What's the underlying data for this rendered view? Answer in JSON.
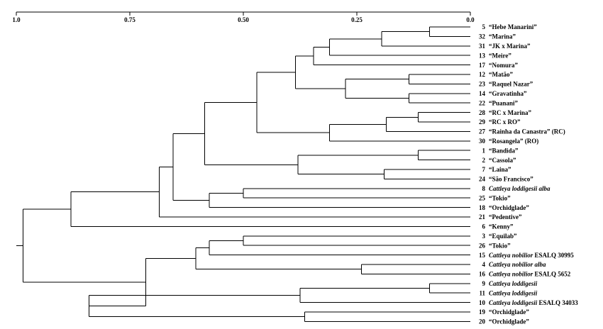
{
  "axis": {
    "ticks": [
      {
        "value": 1.0,
        "label": "1.0"
      },
      {
        "value": 0.75,
        "label": "0.75"
      },
      {
        "value": 0.5,
        "label": "0.50"
      },
      {
        "value": 0.25,
        "label": "0.25"
      },
      {
        "value": 0.0,
        "label": "0.0"
      }
    ]
  },
  "leaves": [
    {
      "num": "5",
      "segments": [
        {
          "text": "“Hebe Manarini”",
          "italic": false
        }
      ]
    },
    {
      "num": "32",
      "segments": [
        {
          "text": "“Marina”",
          "italic": false
        }
      ]
    },
    {
      "num": "31",
      "segments": [
        {
          "text": "“JK x Marina”",
          "italic": false
        }
      ]
    },
    {
      "num": "13",
      "segments": [
        {
          "text": "“Meire”",
          "italic": false
        }
      ]
    },
    {
      "num": "17",
      "segments": [
        {
          "text": "“Nomura”",
          "italic": false
        }
      ]
    },
    {
      "num": "12",
      "segments": [
        {
          "text": "“Matão”",
          "italic": false
        }
      ]
    },
    {
      "num": "23",
      "segments": [
        {
          "text": "“Raquel Nazar”",
          "italic": false
        }
      ]
    },
    {
      "num": "14",
      "segments": [
        {
          "text": "“Gravatinha”",
          "italic": false
        }
      ]
    },
    {
      "num": "22",
      "segments": [
        {
          "text": "“Puanani”",
          "italic": false
        }
      ]
    },
    {
      "num": "28",
      "segments": [
        {
          "text": "“RC x Marina”",
          "italic": false
        }
      ]
    },
    {
      "num": "29",
      "segments": [
        {
          "text": "“RC x RO”",
          "italic": false
        }
      ]
    },
    {
      "num": "27",
      "segments": [
        {
          "text": "“Rainha da Canastra” (RC)",
          "italic": false
        }
      ]
    },
    {
      "num": "30",
      "segments": [
        {
          "text": "“Rosangela” (RO)",
          "italic": false
        }
      ]
    },
    {
      "num": "1",
      "segments": [
        {
          "text": "“Bandida”",
          "italic": false
        }
      ]
    },
    {
      "num": "2",
      "segments": [
        {
          "text": "“Cassola”",
          "italic": false
        }
      ]
    },
    {
      "num": "7",
      "segments": [
        {
          "text": "“Laina”",
          "italic": false
        }
      ]
    },
    {
      "num": "24",
      "segments": [
        {
          "text": "“São Francisco”",
          "italic": false
        }
      ]
    },
    {
      "num": "8",
      "segments": [
        {
          "text": "Cattleya loddigesii alba",
          "italic": true
        }
      ]
    },
    {
      "num": "25",
      "segments": [
        {
          "text": "“Tokio”",
          "italic": false
        }
      ]
    },
    {
      "num": "18",
      "segments": [
        {
          "text": "“Orchidglade”",
          "italic": false
        }
      ]
    },
    {
      "num": "21",
      "segments": [
        {
          "text": "“Pedentive”",
          "italic": false
        }
      ]
    },
    {
      "num": "6",
      "segments": [
        {
          "text": "“Kenny”",
          "italic": false
        }
      ]
    },
    {
      "num": "3",
      "segments": [
        {
          "text": "“Equilab”",
          "italic": false
        }
      ]
    },
    {
      "num": "26",
      "segments": [
        {
          "text": "“Tokio”",
          "italic": false
        }
      ]
    },
    {
      "num": "15",
      "segments": [
        {
          "text": "Cattleya nobilior",
          "italic": true
        },
        {
          "text": " ESALQ 30995",
          "italic": false
        }
      ]
    },
    {
      "num": "4",
      "segments": [
        {
          "text": "Cattleya nobilior alba",
          "italic": true
        }
      ]
    },
    {
      "num": "16",
      "segments": [
        {
          "text": "Cattleya nobilior",
          "italic": true
        },
        {
          "text": " ESALQ 5652",
          "italic": false
        }
      ]
    },
    {
      "num": "9",
      "segments": [
        {
          "text": "Cattleya loddigesii",
          "italic": true
        }
      ]
    },
    {
      "num": "11",
      "segments": [
        {
          "text": "Cattleya loddigesii",
          "italic": true
        }
      ]
    },
    {
      "num": "10",
      "segments": [
        {
          "text": "Cattleya loddigesii",
          "italic": true
        },
        {
          "text": " ESALQ 34033",
          "italic": false
        }
      ]
    },
    {
      "num": "19",
      "segments": [
        {
          "text": "“Orchidglade”",
          "italic": false
        }
      ]
    },
    {
      "num": "20",
      "segments": [
        {
          "text": "“Orchidglade”",
          "italic": false
        }
      ]
    }
  ],
  "tree": {
    "h": 0.985,
    "c": [
      {
        "h": 0.88,
        "c": [
          {
            "h": 0.685,
            "c": [
              {
                "h": 0.655,
                "c": [
                  {
                    "h": 0.585,
                    "c": [
                      {
                        "h": 0.47,
                        "c": [
                          {
                            "h": 0.385,
                            "c": [
                              {
                                "h": 0.345,
                                "c": [
                                  {
                                    "h": 0.31,
                                    "c": [
                                      {
                                        "h": 0.195,
                                        "c": [
                                          {
                                            "h": 0.09,
                                            "c": [
                                              {
                                                "leaf": 0
                                              },
                                              {
                                                "leaf": 1
                                              }
                                            ]
                                          },
                                          {
                                            "leaf": 2
                                          }
                                        ]
                                      },
                                      {
                                        "leaf": 3
                                      }
                                    ]
                                  },
                                  {
                                    "leaf": 4
                                  }
                                ]
                              },
                              {
                                "h": 0.275,
                                "c": [
                                  {
                                    "h": 0.135,
                                    "c": [
                                      {
                                        "leaf": 5
                                      },
                                      {
                                        "leaf": 6
                                      }
                                    ]
                                  },
                                  {
                                    "h": 0.135,
                                    "c": [
                                      {
                                        "leaf": 7
                                      },
                                      {
                                        "leaf": 8
                                      }
                                    ]
                                  }
                                ]
                              }
                            ]
                          },
                          {
                            "h": 0.31,
                            "c": [
                              {
                                "h": 0.185,
                                "c": [
                                  {
                                    "h": 0.115,
                                    "c": [
                                      {
                                        "leaf": 9
                                      },
                                      {
                                        "leaf": 10
                                      }
                                    ]
                                  },
                                  {
                                    "leaf": 11
                                  }
                                ]
                              },
                              {
                                "leaf": 12
                              }
                            ]
                          }
                        ]
                      },
                      {
                        "h": 0.38,
                        "c": [
                          {
                            "h": 0.115,
                            "c": [
                              {
                                "leaf": 13
                              },
                              {
                                "leaf": 14
                              }
                            ]
                          },
                          {
                            "h": 0.19,
                            "c": [
                              {
                                "leaf": 15
                              },
                              {
                                "leaf": 16
                              }
                            ]
                          }
                        ]
                      }
                    ]
                  },
                  {
                    "h": 0.575,
                    "c": [
                      {
                        "h": 0.5,
                        "c": [
                          {
                            "leaf": 17
                          },
                          {
                            "leaf": 18
                          }
                        ]
                      },
                      {
                        "leaf": 19
                      }
                    ]
                  }
                ]
              },
              {
                "leaf": 20
              }
            ]
          },
          {
            "leaf": 21
          }
        ]
      },
      {
        "h": 0.715,
        "c": [
          {
            "h": 0.605,
            "c": [
              {
                "h": 0.575,
                "c": [
                  {
                    "h": 0.5,
                    "c": [
                      {
                        "leaf": 22
                      },
                      {
                        "leaf": 23
                      }
                    ]
                  },
                  {
                    "leaf": 24
                  }
                ]
              },
              {
                "h": 0.24,
                "c": [
                  {
                    "leaf": 25
                  },
                  {
                    "leaf": 26
                  }
                ]
              }
            ]
          },
          {
            "h": 0.84,
            "c": [
              {
                "h": 0.375,
                "c": [
                  {
                    "h": 0.09,
                    "c": [
                      {
                        "leaf": 27
                      },
                      {
                        "leaf": 28
                      }
                    ]
                  },
                  {
                    "leaf": 29
                  }
                ]
              },
              {
                "h": 0.365,
                "c": [
                  {
                    "leaf": 30
                  },
                  {
                    "leaf": 31
                  }
                ]
              }
            ]
          }
        ]
      }
    ]
  }
}
